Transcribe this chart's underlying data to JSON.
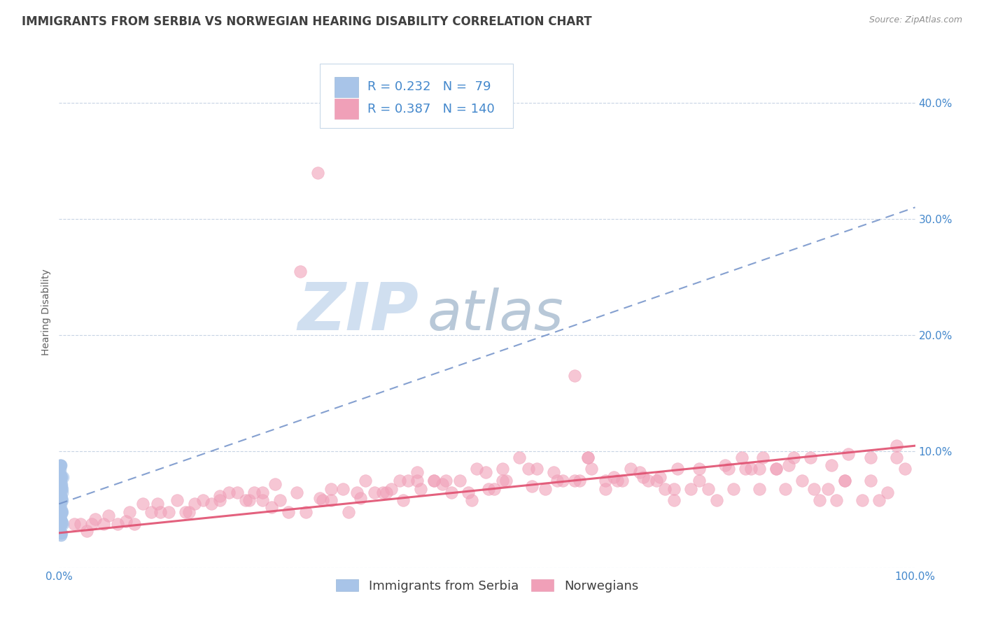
{
  "title": "IMMIGRANTS FROM SERBIA VS NORWEGIAN HEARING DISABILITY CORRELATION CHART",
  "source_text": "Source: ZipAtlas.com",
  "ylabel": "Hearing Disability",
  "legend_label1": "Immigrants from Serbia",
  "legend_label2": "Norwegians",
  "R1": 0.232,
  "N1": 79,
  "R2": 0.387,
  "N2": 140,
  "color1": "#a8c4e8",
  "color2": "#f0a0b8",
  "trend1_color": "#7090c8",
  "trend2_color": "#e05070",
  "title_color": "#404040",
  "axis_label_color": "#4488cc",
  "legend_R_color": "#4488cc",
  "background_color": "#ffffff",
  "grid_color": "#c8d4e4",
  "xmin": 0.0,
  "xmax": 1.0,
  "ymin": 0.0,
  "ymax": 0.44,
  "yticks": [
    0.0,
    0.1,
    0.2,
    0.3,
    0.4
  ],
  "ytick_labels": [
    "",
    "10.0%",
    "20.0%",
    "30.0%",
    "40.0%"
  ],
  "xtick_labels": [
    "0.0%",
    "100.0%"
  ],
  "watermark_ZIP": "ZIP",
  "watermark_atlas": "atlas",
  "watermark_color_ZIP": "#d0dff0",
  "watermark_color_atlas": "#b8c8d8",
  "serbia_x": [
    0.001,
    0.002,
    0.003,
    0.001,
    0.002,
    0.004,
    0.005,
    0.001,
    0.002,
    0.003,
    0.001,
    0.002,
    0.001,
    0.003,
    0.004,
    0.002,
    0.001,
    0.003,
    0.002,
    0.001,
    0.002,
    0.003,
    0.001,
    0.002,
    0.001,
    0.003,
    0.004,
    0.002,
    0.001,
    0.002,
    0.005,
    0.003,
    0.001,
    0.002,
    0.001,
    0.002,
    0.003,
    0.001,
    0.002,
    0.004,
    0.001,
    0.002,
    0.003,
    0.001,
    0.002,
    0.001,
    0.003,
    0.002,
    0.001,
    0.002,
    0.003,
    0.001,
    0.002,
    0.001,
    0.002,
    0.001,
    0.003,
    0.002,
    0.001,
    0.002,
    0.001,
    0.002,
    0.003,
    0.001,
    0.002,
    0.003,
    0.001,
    0.002,
    0.001,
    0.003,
    0.002,
    0.001,
    0.002,
    0.001,
    0.003,
    0.002,
    0.001,
    0.002,
    0.001
  ],
  "serbia_y": [
    0.075,
    0.055,
    0.07,
    0.085,
    0.045,
    0.065,
    0.078,
    0.038,
    0.058,
    0.048,
    0.068,
    0.028,
    0.08,
    0.058,
    0.048,
    0.072,
    0.088,
    0.038,
    0.062,
    0.052,
    0.03,
    0.072,
    0.082,
    0.048,
    0.062,
    0.038,
    0.068,
    0.088,
    0.048,
    0.058,
    0.038,
    0.078,
    0.068,
    0.048,
    0.062,
    0.03,
    0.078,
    0.072,
    0.048,
    0.058,
    0.038,
    0.088,
    0.05,
    0.068,
    0.058,
    0.078,
    0.04,
    0.06,
    0.068,
    0.048,
    0.03,
    0.075,
    0.058,
    0.048,
    0.068,
    0.088,
    0.04,
    0.062,
    0.05,
    0.078,
    0.068,
    0.028,
    0.06,
    0.08,
    0.048,
    0.068,
    0.058,
    0.04,
    0.078,
    0.048,
    0.06,
    0.088,
    0.038,
    0.068,
    0.048,
    0.06,
    0.078,
    0.04,
    0.068
  ],
  "norwegian_x": [
    0.018,
    0.042,
    0.078,
    0.115,
    0.152,
    0.188,
    0.222,
    0.248,
    0.278,
    0.305,
    0.332,
    0.352,
    0.378,
    0.402,
    0.422,
    0.448,
    0.478,
    0.502,
    0.522,
    0.552,
    0.578,
    0.602,
    0.622,
    0.652,
    0.678,
    0.702,
    0.722,
    0.748,
    0.778,
    0.802,
    0.822,
    0.852,
    0.878,
    0.902,
    0.922,
    0.948,
    0.978,
    0.098,
    0.198,
    0.302,
    0.398,
    0.498,
    0.602,
    0.698,
    0.798,
    0.898,
    0.148,
    0.252,
    0.348,
    0.452,
    0.548,
    0.648,
    0.748,
    0.848,
    0.948,
    0.052,
    0.128,
    0.228,
    0.318,
    0.418,
    0.518,
    0.618,
    0.718,
    0.818,
    0.918,
    0.082,
    0.178,
    0.282,
    0.382,
    0.482,
    0.582,
    0.682,
    0.782,
    0.882,
    0.978,
    0.032,
    0.138,
    0.238,
    0.338,
    0.438,
    0.538,
    0.638,
    0.738,
    0.838,
    0.938,
    0.068,
    0.168,
    0.268,
    0.368,
    0.468,
    0.568,
    0.668,
    0.768,
    0.868,
    0.968,
    0.108,
    0.208,
    0.308,
    0.408,
    0.508,
    0.608,
    0.708,
    0.808,
    0.908,
    0.058,
    0.158,
    0.258,
    0.358,
    0.458,
    0.558,
    0.658,
    0.758,
    0.858,
    0.958,
    0.088,
    0.188,
    0.288,
    0.388,
    0.488,
    0.588,
    0.688,
    0.788,
    0.888,
    0.988,
    0.038,
    0.238,
    0.438,
    0.638,
    0.838,
    0.025,
    0.218,
    0.418,
    0.618,
    0.818,
    0.118,
    0.318,
    0.518,
    0.718,
    0.918
  ],
  "norwegian_y": [
    0.038,
    0.042,
    0.04,
    0.055,
    0.048,
    0.062,
    0.058,
    0.052,
    0.065,
    0.06,
    0.068,
    0.06,
    0.065,
    0.058,
    0.068,
    0.072,
    0.065,
    0.068,
    0.075,
    0.07,
    0.082,
    0.075,
    0.085,
    0.075,
    0.082,
    0.078,
    0.085,
    0.075,
    0.088,
    0.085,
    0.095,
    0.088,
    0.095,
    0.088,
    0.098,
    0.095,
    0.105,
    0.055,
    0.065,
    0.34,
    0.075,
    0.082,
    0.165,
    0.075,
    0.095,
    0.068,
    0.048,
    0.072,
    0.065,
    0.075,
    0.085,
    0.078,
    0.085,
    0.068,
    0.075,
    0.038,
    0.048,
    0.065,
    0.058,
    0.082,
    0.075,
    0.095,
    0.068,
    0.085,
    0.075,
    0.048,
    0.055,
    0.255,
    0.065,
    0.058,
    0.075,
    0.078,
    0.085,
    0.068,
    0.095,
    0.032,
    0.058,
    0.065,
    0.048,
    0.075,
    0.095,
    0.075,
    0.068,
    0.085,
    0.058,
    0.038,
    0.058,
    0.048,
    0.065,
    0.075,
    0.068,
    0.085,
    0.058,
    0.075,
    0.065,
    0.048,
    0.065,
    0.058,
    0.075,
    0.068,
    0.075,
    0.068,
    0.085,
    0.058,
    0.045,
    0.055,
    0.058,
    0.075,
    0.065,
    0.085,
    0.075,
    0.068,
    0.095,
    0.058,
    0.038,
    0.058,
    0.048,
    0.068,
    0.085,
    0.075,
    0.075,
    0.068,
    0.058,
    0.085,
    0.038,
    0.058,
    0.075,
    0.068,
    0.085,
    0.038,
    0.058,
    0.075,
    0.095,
    0.068,
    0.048,
    0.068,
    0.085,
    0.058,
    0.075
  ],
  "title_fontsize": 12,
  "axis_label_fontsize": 10,
  "tick_fontsize": 11,
  "legend_fontsize": 13
}
